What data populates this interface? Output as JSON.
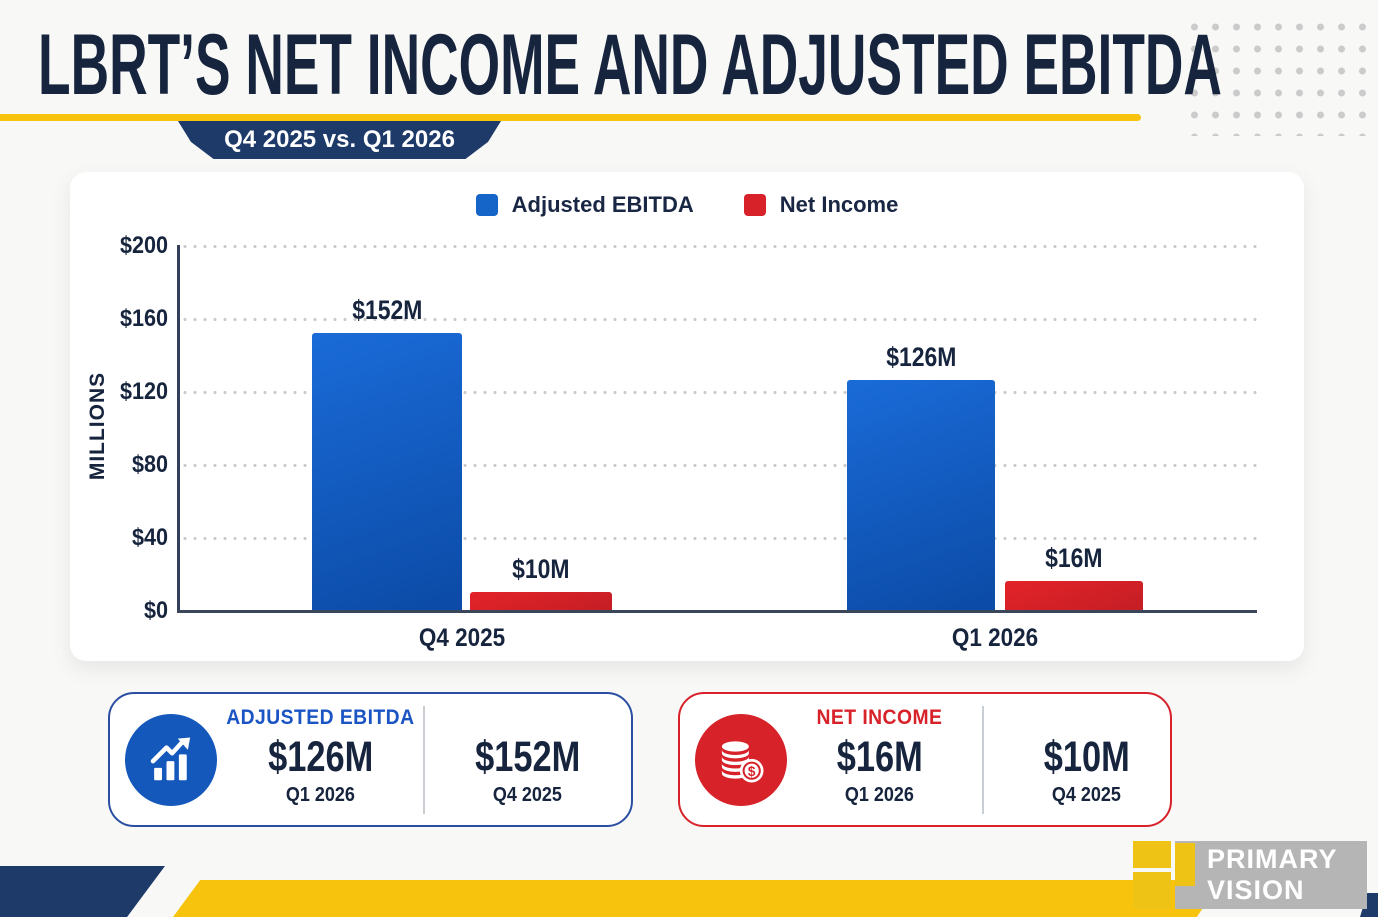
{
  "header": {
    "title": "LBRT’S NET INCOME AND ADJUSTED EBITDA",
    "badge": "Q4 2025 vs. Q1 2026"
  },
  "chart_data": {
    "type": "bar",
    "categories": [
      "Q4 2025",
      "Q1 2026"
    ],
    "series": [
      {
        "name": "Adjusted EBITDA",
        "color": "#1565c8",
        "values": [
          152,
          126
        ],
        "value_labels": [
          "$152M",
          "$126M"
        ]
      },
      {
        "name": "Net Income",
        "color": "#d7222a",
        "values": [
          10,
          16
        ],
        "value_labels": [
          "$10M",
          "$16M"
        ]
      }
    ],
    "ylabel": "MILLIONS",
    "ylim": [
      0,
      200
    ],
    "ytick_labels": [
      "$200",
      "$160",
      "$120",
      "$80",
      "$40",
      "$0"
    ],
    "grid": "horizontal-dotted",
    "legend_position": "top-center"
  },
  "summary_cards": [
    {
      "title": "ADJUSTED EBITDA",
      "icon": "bar-chart-trend-icon",
      "accent": "#1a55c3",
      "entries": [
        {
          "value": "$126M",
          "period": "Q1 2026"
        },
        {
          "value": "$152M",
          "period": "Q4 2025"
        }
      ]
    },
    {
      "title": "NET INCOME",
      "icon": "coins-dollar-icon",
      "accent": "#d7222a",
      "entries": [
        {
          "value": "$16M",
          "period": "Q1 2026"
        },
        {
          "value": "$10M",
          "period": "Q4 2025"
        }
      ]
    }
  ],
  "logo": {
    "line1": "PRIMARY",
    "line2": "VISION"
  },
  "colors": {
    "navy_text": "#16243d",
    "badge_navy": "#1e3a69",
    "accent_yellow": "#f7c30c",
    "ebitda_blue": "#1565c8",
    "net_income_red": "#d7222a",
    "card_bg": "#ffffff",
    "page_bg": "#f8f8f7",
    "logo_gray": "#b5b5b5"
  }
}
